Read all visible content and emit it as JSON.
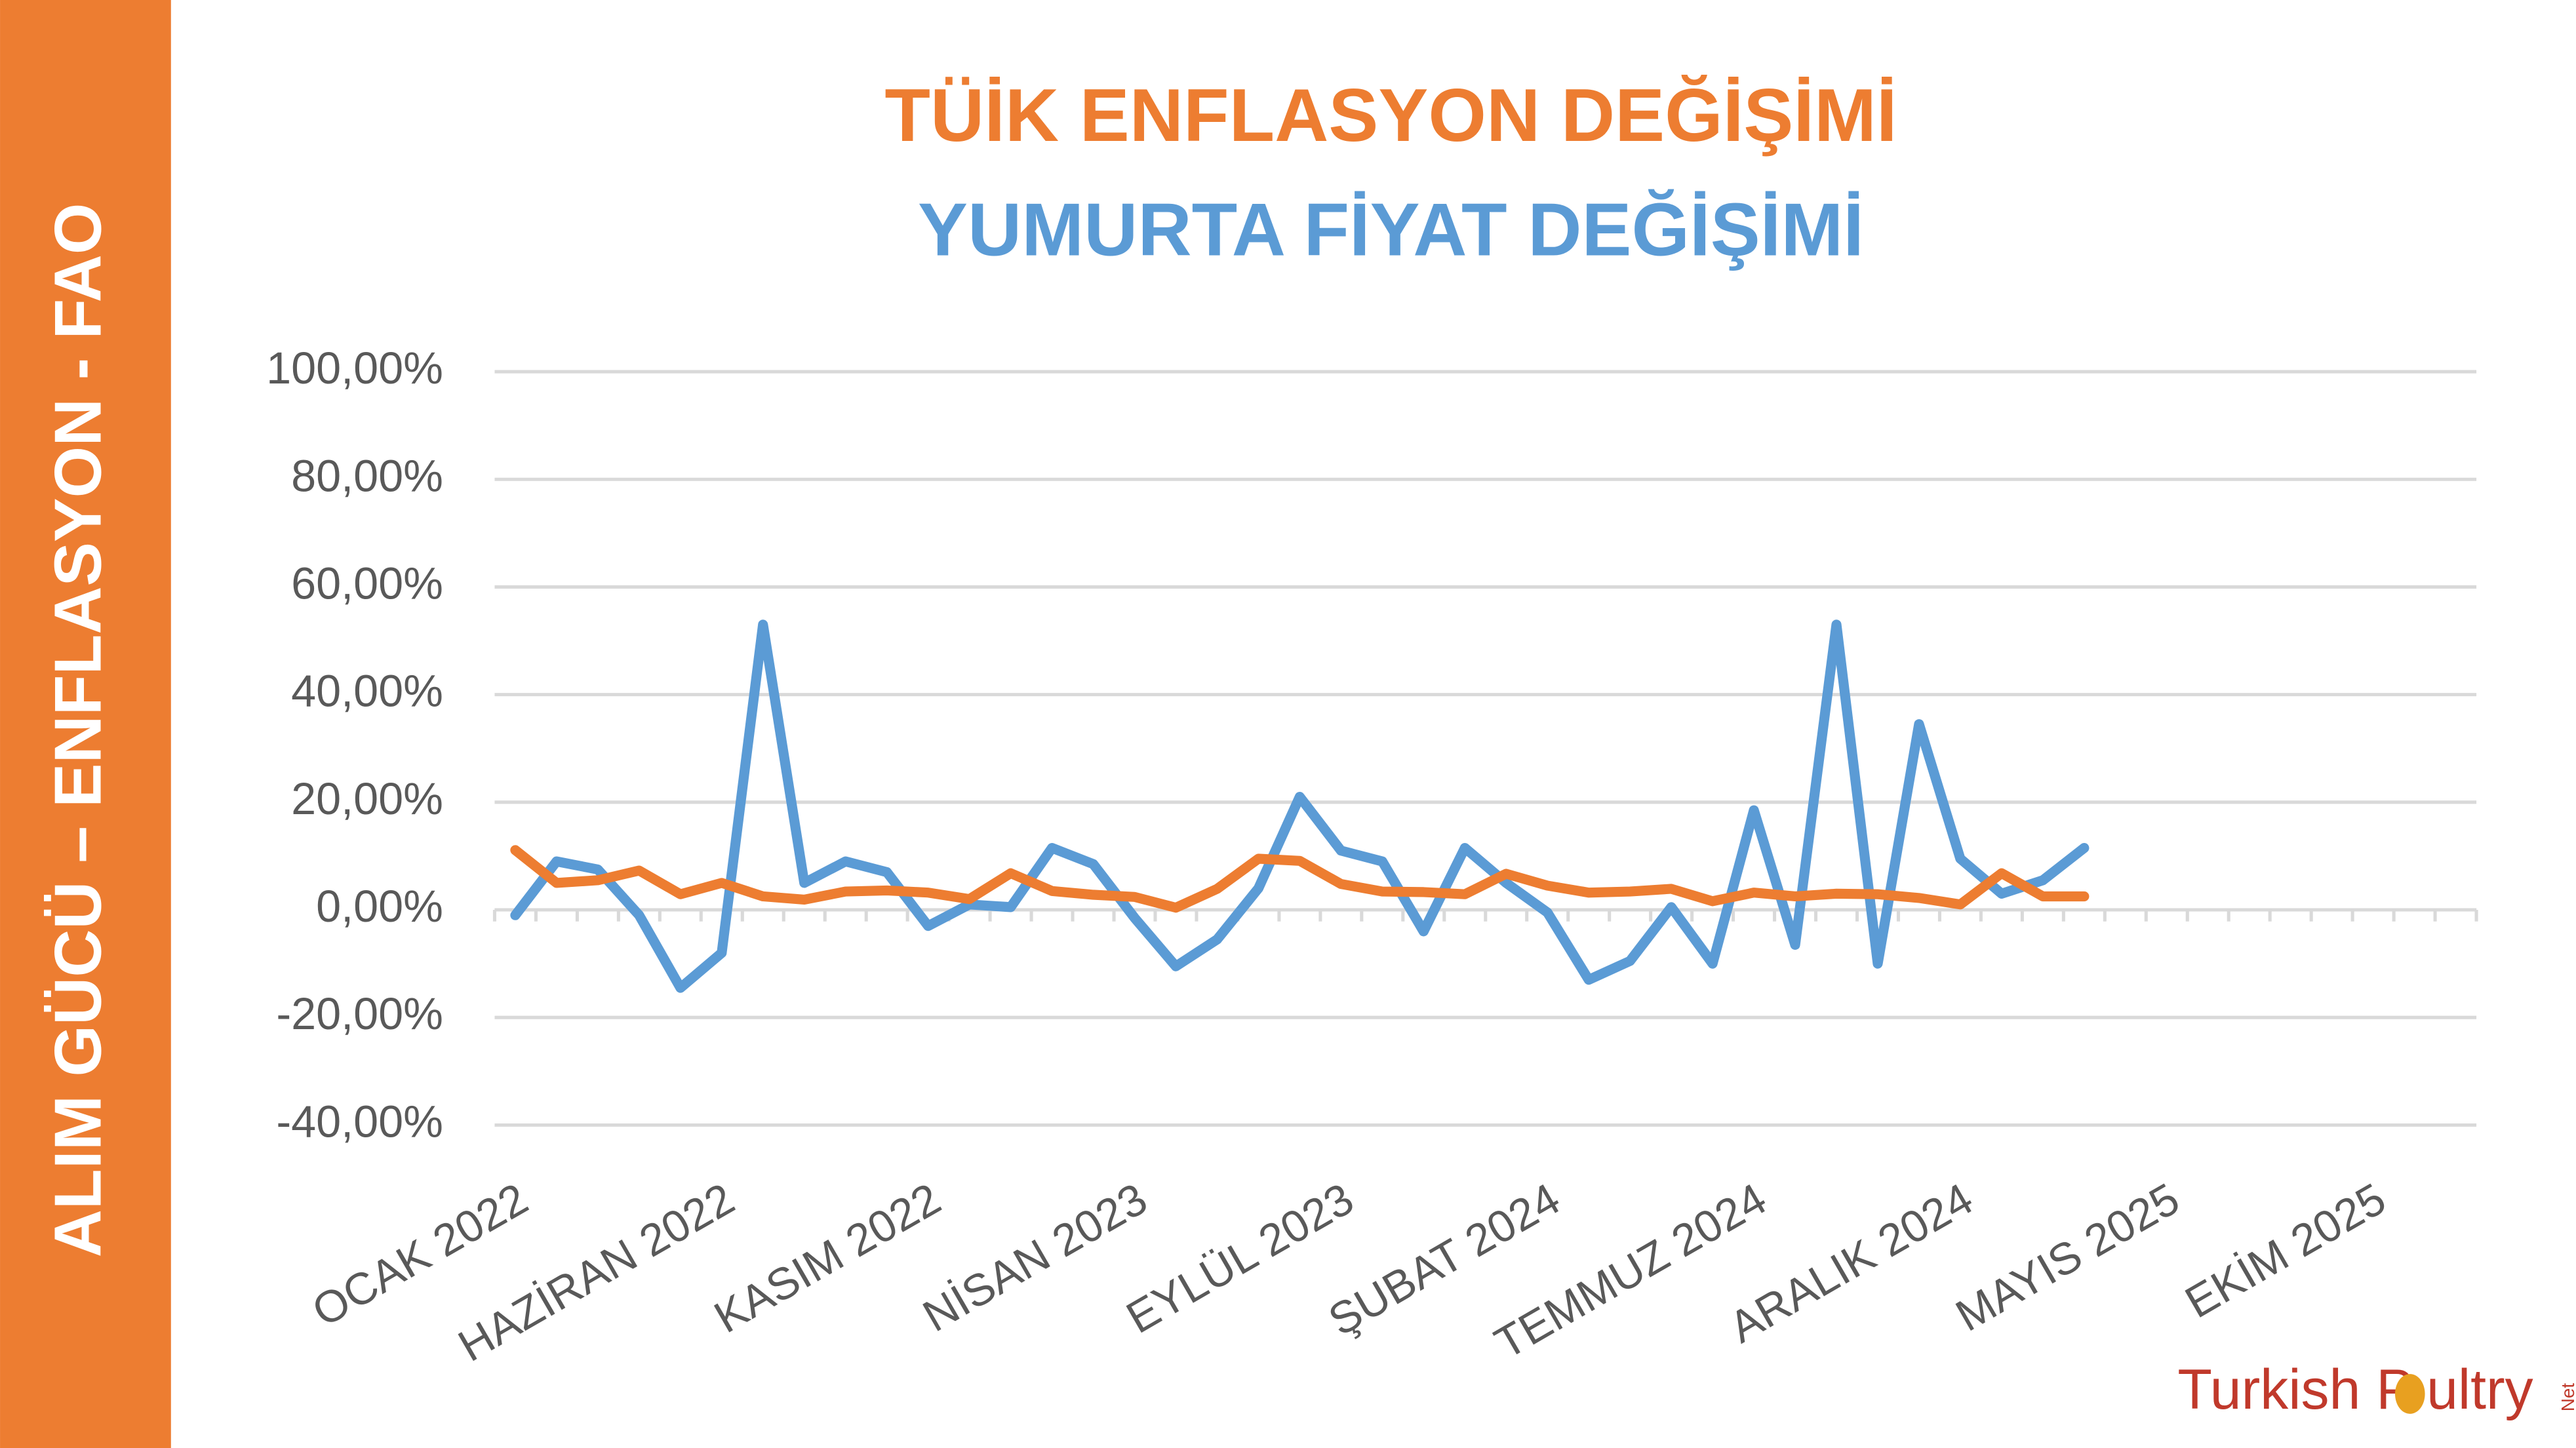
{
  "side_banner": "ALIM GÜCÜ – ENFLASYON - FAO",
  "logo": {
    "part1": "Turkish P",
    "part2": "ultry",
    "suffix": "Net"
  },
  "chart_data": {
    "type": "line",
    "categories": [
      "OCAK 2022",
      null,
      null,
      null,
      null,
      "HAZİRAN 2022",
      null,
      null,
      null,
      null,
      "KASIM 2022",
      null,
      null,
      null,
      null,
      "NİSAN 2023",
      null,
      null,
      null,
      null,
      "EYLÜL 2023",
      null,
      null,
      null,
      null,
      "ŞUBAT 2024",
      null,
      null,
      null,
      null,
      "TEMMUZ 2024",
      null,
      null,
      null,
      null,
      "ARALIK 2024",
      null,
      null,
      null,
      null,
      "MAYIS 2025",
      null,
      null,
      null,
      null,
      "EKİM 2025",
      null,
      null
    ],
    "series": [
      {
        "name": "TÜİK ENFLASYON DEĞİŞİMİ",
        "color": "#ed7d31",
        "values": [
          11.1,
          5,
          5.5,
          7.3,
          2.9,
          5,
          2.5,
          1.9,
          3.4,
          3.6,
          3.2,
          2,
          6.8,
          3.5,
          2.8,
          2.4,
          0.4,
          3.9,
          9.5,
          9.1,
          4.8,
          3.4,
          3.3,
          2.9,
          6.7,
          4.5,
          3.2,
          3.4,
          3.9,
          1.6,
          3.2,
          2.5,
          3,
          2.9,
          2.2,
          1,
          6.8,
          2.5,
          2.5,
          null,
          null,
          null,
          null,
          null,
          null,
          null,
          null,
          null
        ]
      },
      {
        "name": "YUMURTA FİYAT DEĞİŞİMİ",
        "color": "#5b9bd5",
        "values": [
          -1,
          9,
          7.5,
          -1,
          -14.5,
          -8,
          53,
          5,
          9,
          7,
          -3,
          1,
          0.5,
          11.5,
          8.5,
          -1.5,
          -10.5,
          -5.5,
          4,
          21,
          11,
          9,
          -4,
          11.5,
          5,
          -0.5,
          -13,
          -9.5,
          0.5,
          -10,
          18.5,
          -6.5,
          53,
          -10,
          34.5,
          9.5,
          3,
          5.5,
          11.5,
          null,
          null,
          null,
          null,
          null,
          null,
          null,
          null,
          null
        ]
      }
    ],
    "ylim": [
      -40,
      100
    ],
    "yticks": [
      {
        "value": -40,
        "label": "-40,00%"
      },
      {
        "value": -20,
        "label": "-20,00%"
      },
      {
        "value": 0,
        "label": "0,00%"
      },
      {
        "value": 20,
        "label": "20,00%"
      },
      {
        "value": 40,
        "label": "40,00%"
      },
      {
        "value": 60,
        "label": "60,00%"
      },
      {
        "value": 80,
        "label": "80,00%"
      },
      {
        "value": 100,
        "label": "100,00%"
      }
    ],
    "grid": true
  }
}
